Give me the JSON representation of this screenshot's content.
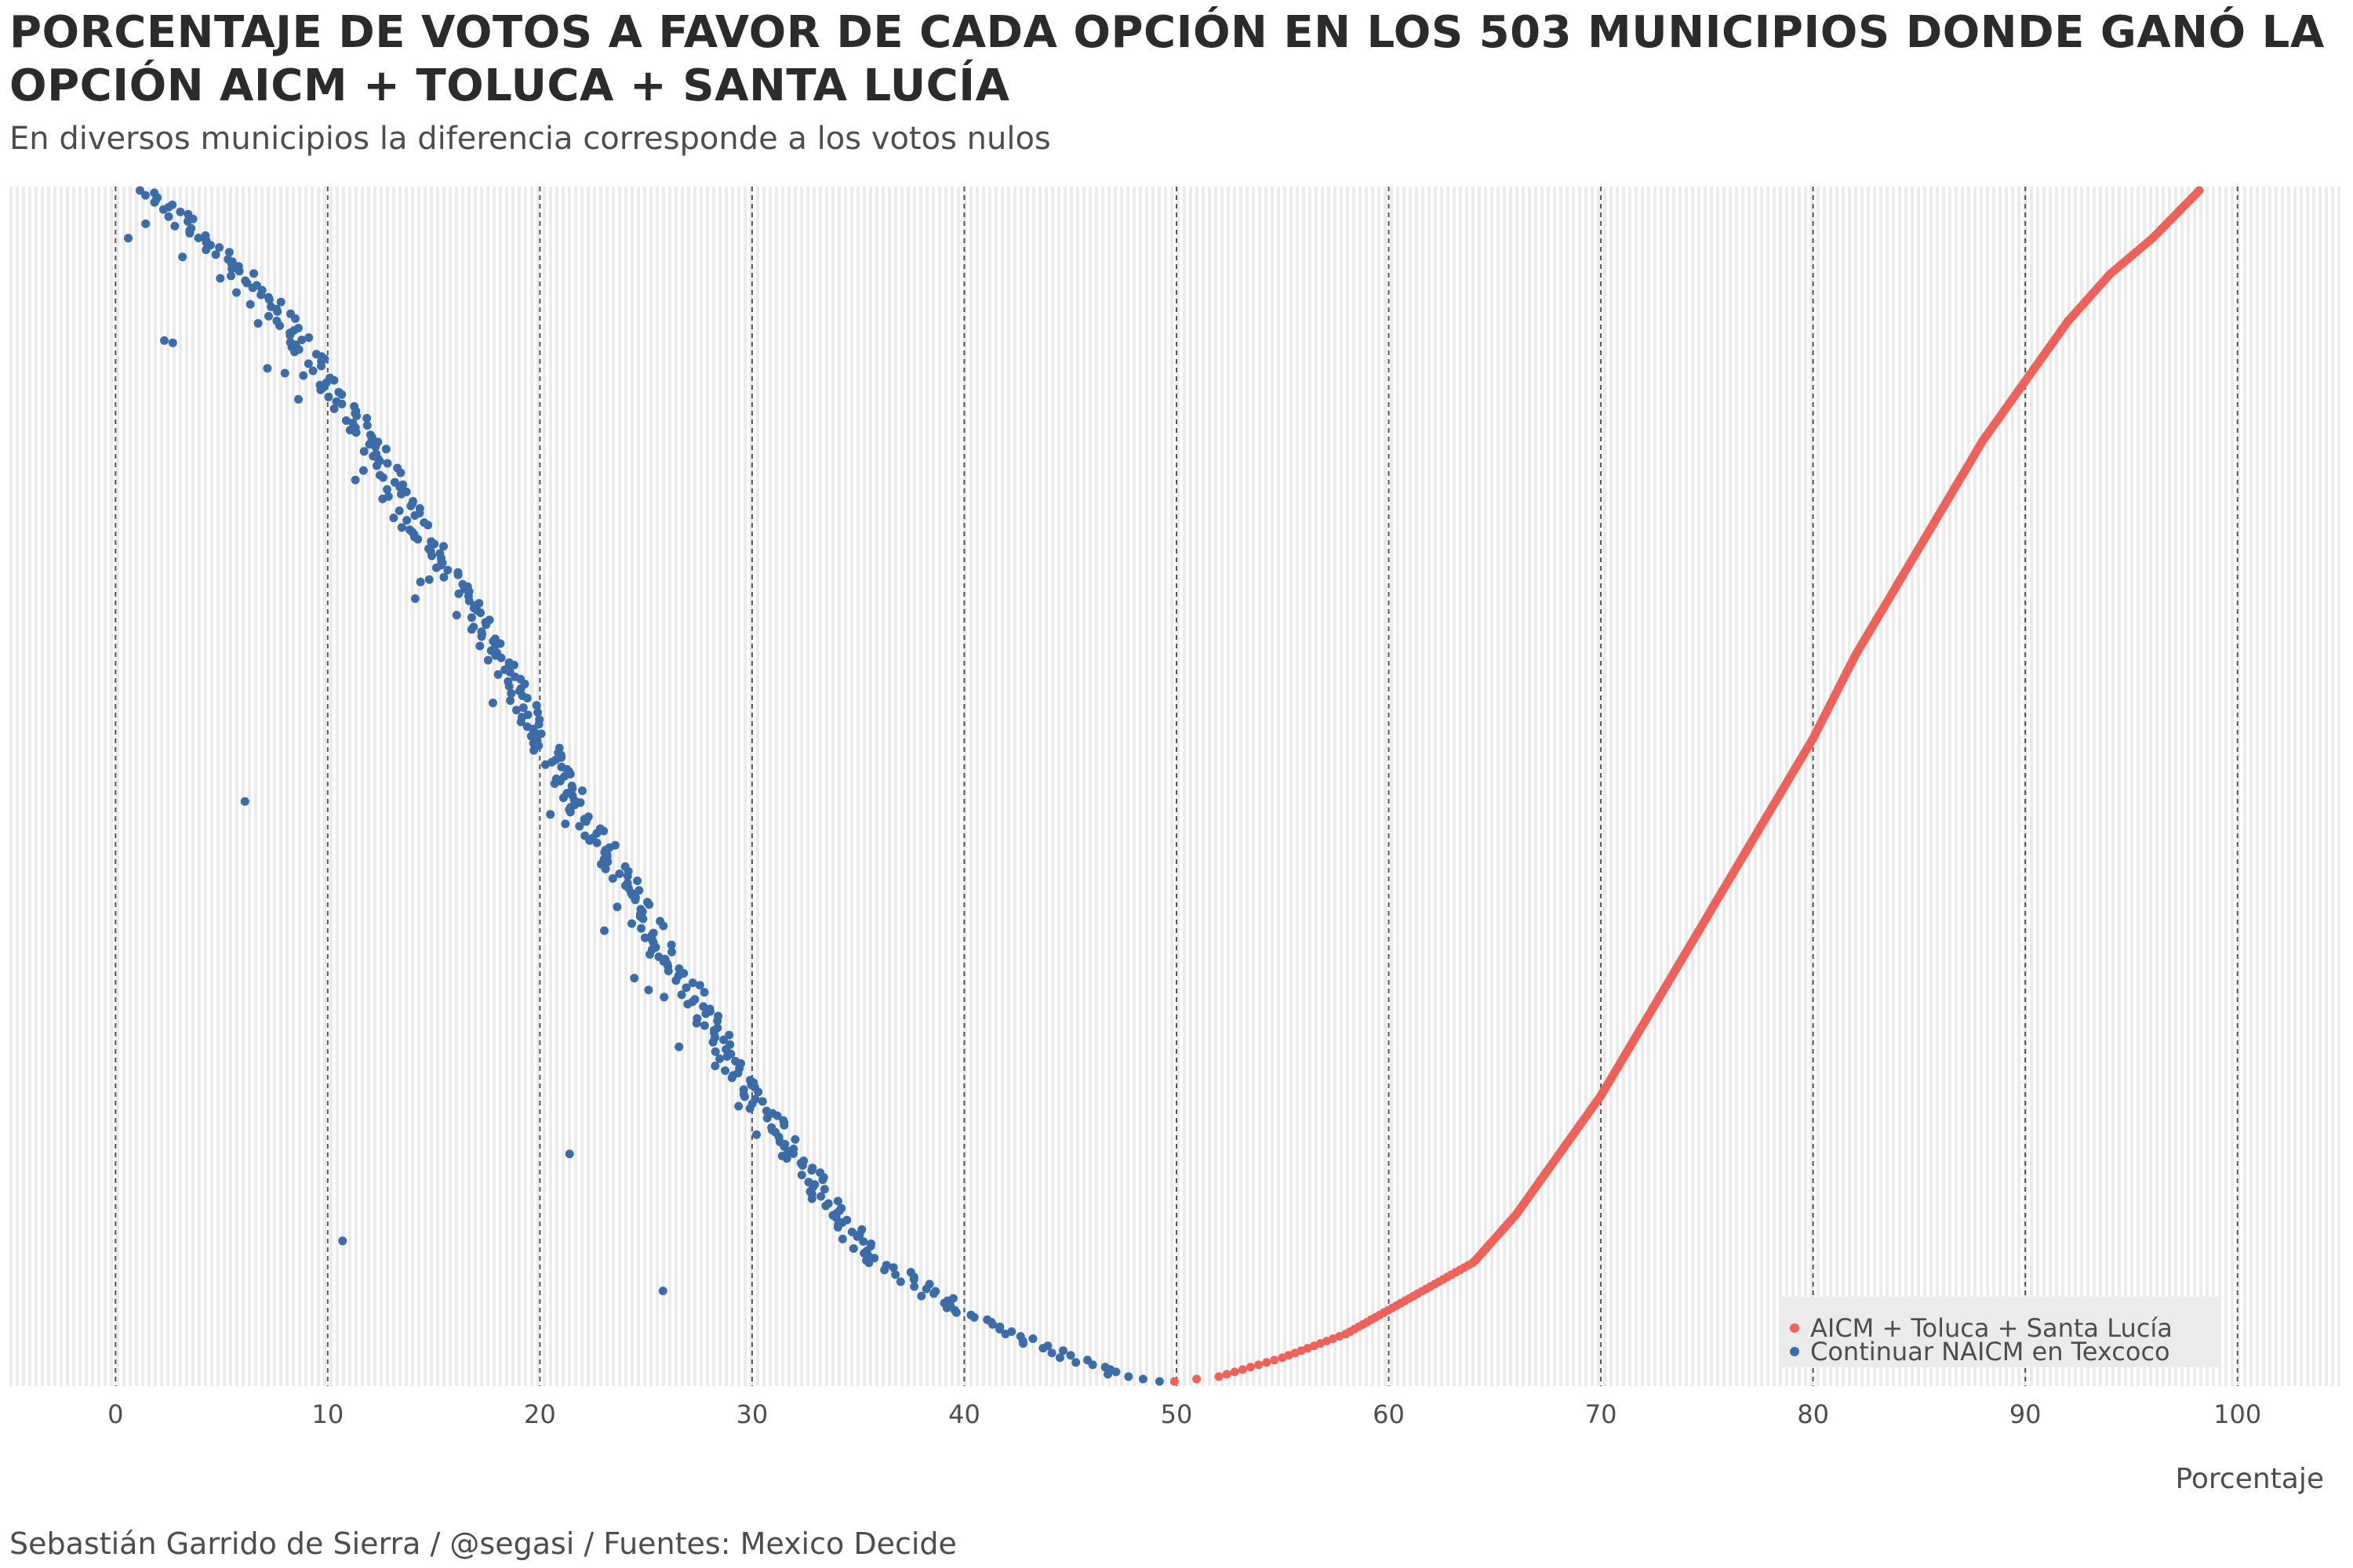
{
  "header": {
    "title": "PORCENTAJE DE VOTOS A FAVOR DE CADA OPCIÓN EN LOS 503 MUNICIPIOS DONDE GANÓ LA OPCIÓN AICM + TOLUCA + SANTA LUCÍA",
    "subtitle": "En diversos municipios la diferencia corresponde a los votos nulos"
  },
  "footer": {
    "caption": "Sebastián Garrido de Sierra / @segasi / Fuentes: Mexico Decide"
  },
  "colors": {
    "series_aicm": "#ef6159",
    "series_naicm": "#3c6ca8",
    "stripe": "#ebebeb",
    "gridline": "#555555",
    "legend_bg": "#ebebeb"
  },
  "chart_data": {
    "type": "scatter",
    "title": "PORCENTAJE DE VOTOS A FAVOR DE CADA OPCIÓN EN LOS 503 MUNICIPIOS DONDE GANÓ LA OPCIÓN AICM + TOLUCA + SANTA LUCÍA",
    "subtitle": "En diversos municipios la diferencia corresponde a los votos nulos",
    "xlabel": "Porcentaje",
    "ylabel": "",
    "xlim": [
      -5,
      105
    ],
    "x_ticks": [
      0,
      10,
      20,
      30,
      40,
      50,
      60,
      70,
      80,
      90,
      100
    ],
    "municipality_count": 503,
    "y_axis": "municipios ordenados por porcentaje de AICM + Toluca + Santa Lucía (sin etiquetas)",
    "grid": "vertical dashed lines every 10 on x",
    "legend_position": "bottom-right",
    "series": [
      {
        "name": "AICM + Toluca + Santa Lucía",
        "color": "#ef6159",
        "description": "Porcentaje de votos por AICM + Toluca + Santa Lucía, ordenado de menor (≈49.9) a mayor (≈98.2)",
        "profile_x": [
          49.9,
          52.0,
          55.0,
          58.0,
          61.0,
          64.0,
          66.0,
          68.0,
          70.0,
          72.0,
          74.0,
          76.0,
          78.0,
          80.0,
          82.0,
          84.0,
          86.0,
          88.0,
          90.0,
          92.0,
          94.0,
          96.0,
          98.2
        ],
        "profile_rank_fraction": [
          0.0,
          0.004,
          0.02,
          0.04,
          0.07,
          0.1,
          0.14,
          0.19,
          0.24,
          0.3,
          0.36,
          0.42,
          0.48,
          0.54,
          0.61,
          0.67,
          0.73,
          0.79,
          0.84,
          0.89,
          0.93,
          0.96,
          1.0
        ]
      },
      {
        "name": "Continuar NAICM en Texcoco",
        "color": "#3c6ca8",
        "description": "Porcentaje de votos por Continuar NAICM en Texcoco en los mismos municipios (≈ 100 − AICM, menos votos nulos)",
        "profile_x": [
          49.0,
          47.5,
          45.0,
          42.0,
          39.0,
          36.0,
          34.0,
          32.0,
          30.0,
          28.0,
          26.0,
          24.0,
          22.0,
          20.0,
          18.0,
          16.0,
          14.0,
          12.0,
          10.0,
          8.0,
          6.0,
          4.0,
          1.8
        ],
        "profile_rank_fraction": [
          0.0,
          0.004,
          0.02,
          0.04,
          0.07,
          0.1,
          0.14,
          0.19,
          0.24,
          0.3,
          0.36,
          0.42,
          0.48,
          0.54,
          0.61,
          0.67,
          0.73,
          0.79,
          0.84,
          0.89,
          0.93,
          0.96,
          1.0
        ],
        "outliers": [
          {
            "x": 0.6,
            "rank_fraction": 0.96
          },
          {
            "x": 2.3,
            "rank_fraction": 0.874
          },
          {
            "x": 2.7,
            "rank_fraction": 0.872
          },
          {
            "x": 6.1,
            "rank_fraction": 0.487
          },
          {
            "x": 10.7,
            "rank_fraction": 0.118
          },
          {
            "x": 21.4,
            "rank_fraction": 0.191
          },
          {
            "x": 25.8,
            "rank_fraction": 0.076
          }
        ]
      }
    ]
  },
  "legend": {
    "items": [
      {
        "label": "AICM + Toluca + Santa Lucía",
        "color": "#ef6159"
      },
      {
        "label": "Continuar NAICM en Texcoco",
        "color": "#3c6ca8"
      }
    ]
  }
}
